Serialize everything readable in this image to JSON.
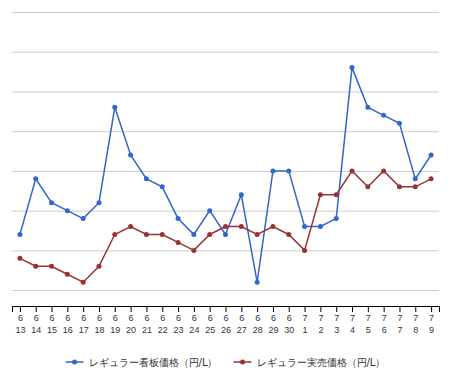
{
  "chart_data": {
    "type": "line",
    "categories": [
      [
        "6",
        "13"
      ],
      [
        "6",
        "14"
      ],
      [
        "6",
        "15"
      ],
      [
        "6",
        "16"
      ],
      [
        "6",
        "17"
      ],
      [
        "6",
        "18"
      ],
      [
        "6",
        "19"
      ],
      [
        "6",
        "20"
      ],
      [
        "6",
        "21"
      ],
      [
        "6",
        "22"
      ],
      [
        "6",
        "23"
      ],
      [
        "6",
        "24"
      ],
      [
        "6",
        "25"
      ],
      [
        "6",
        "26"
      ],
      [
        "6",
        "27"
      ],
      [
        "6",
        "28"
      ],
      [
        "6",
        "29"
      ],
      [
        "6",
        "30"
      ],
      [
        "7",
        "1"
      ],
      [
        "7",
        "2"
      ],
      [
        "7",
        "3"
      ],
      [
        "7",
        "4"
      ],
      [
        "7",
        "5"
      ],
      [
        "7",
        "6"
      ],
      [
        "7",
        "7"
      ],
      [
        "7",
        "8"
      ],
      [
        "7",
        "9"
      ]
    ],
    "series": [
      {
        "name": "レギュラー看板価格（円/L）",
        "color": "#3366CC",
        "marker": "circle",
        "values": [
          147,
          154,
          151,
          150,
          149,
          151,
          163,
          157,
          154,
          153,
          149,
          147,
          150,
          147,
          152,
          141,
          155,
          155,
          148,
          148,
          149,
          168,
          163,
          162,
          161,
          154,
          157
        ]
      },
      {
        "name": "レギュラー実売価格（円/L）",
        "color": "#993333",
        "marker": "circle",
        "values": [
          144,
          143,
          143,
          142,
          141,
          143,
          147,
          148,
          147,
          147,
          146,
          145,
          147,
          148,
          148,
          147,
          148,
          147,
          145,
          152,
          152,
          155,
          153,
          155,
          153,
          153,
          154
        ]
      }
    ],
    "ylim": [
      138,
      175
    ],
    "yticks": [
      140,
      145,
      150,
      155,
      160,
      165,
      170,
      175
    ],
    "grid": true,
    "tick_labels": "x",
    "legend": "bottom"
  }
}
